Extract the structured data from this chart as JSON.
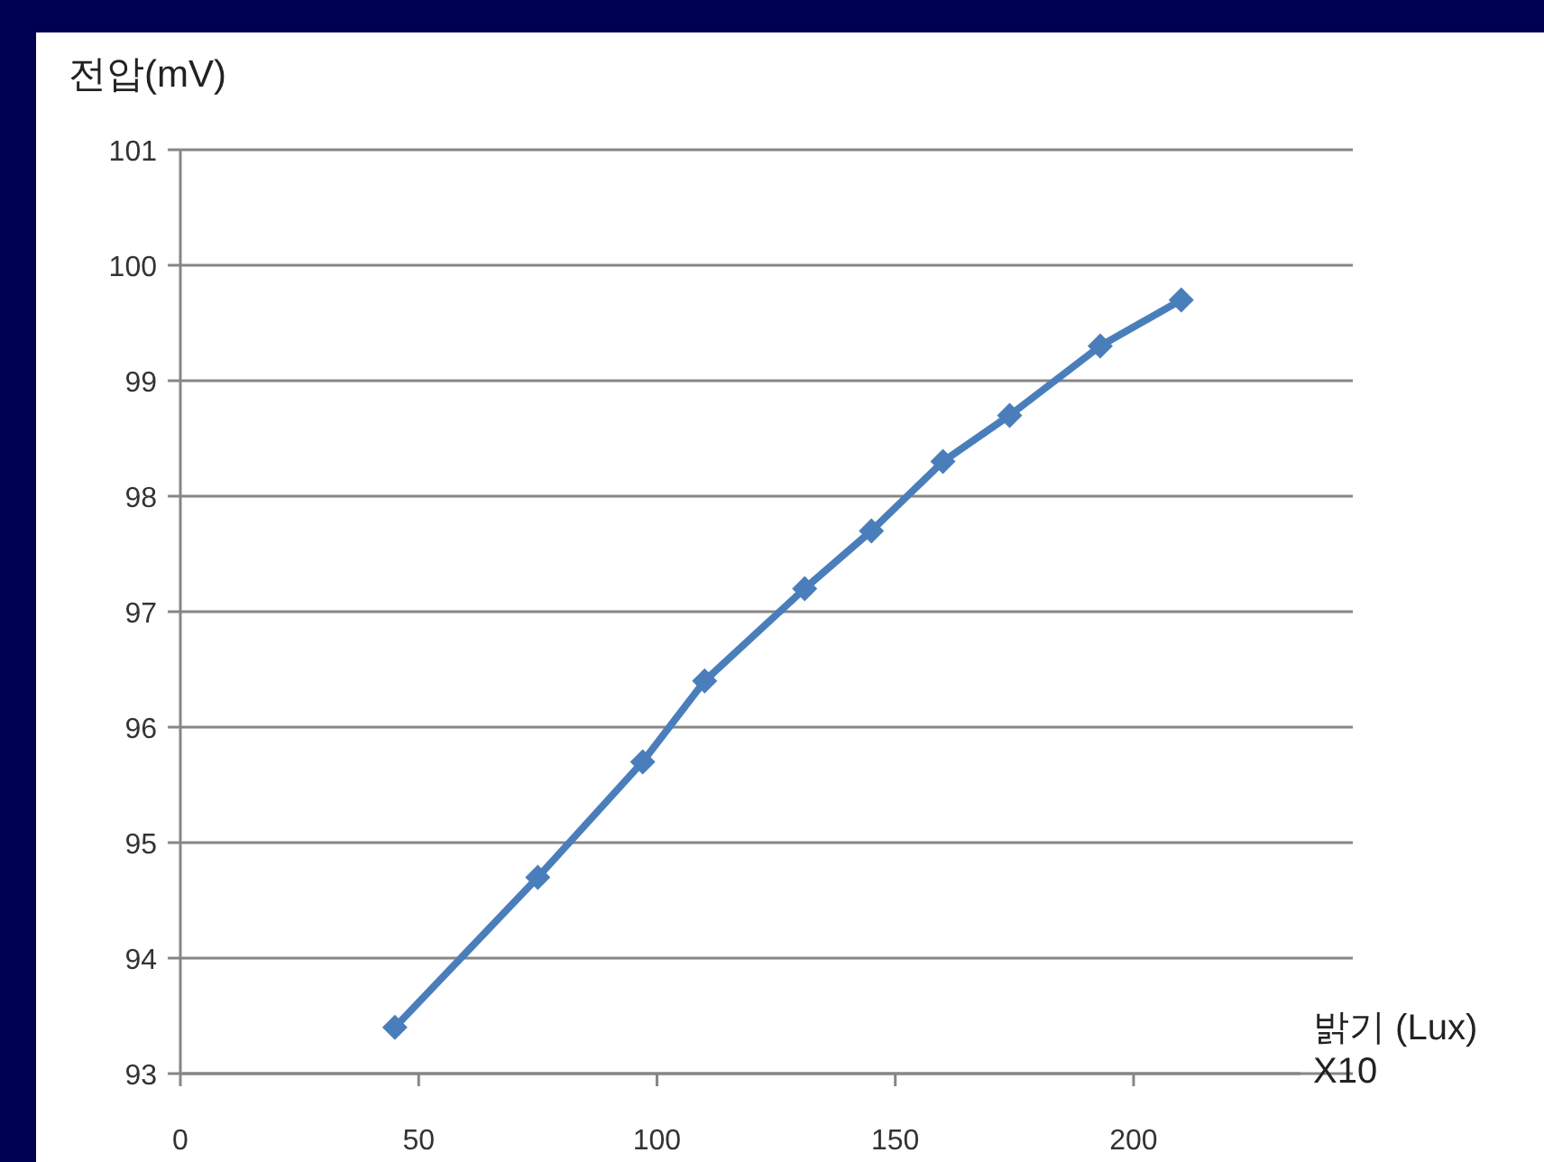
{
  "chart_data": {
    "type": "line",
    "ylabel": "전압(mV)",
    "xlabel": "밝기 (Lux)\nX10",
    "x": [
      45,
      75,
      97,
      110,
      131,
      145,
      160,
      174,
      193,
      210
    ],
    "series": [
      {
        "color": "#4a7ebb",
        "values": [
          93.4,
          94.7,
          95.7,
          96.4,
          97.2,
          97.7,
          98.3,
          98.7,
          99.3,
          99.7
        ]
      }
    ],
    "xlim": [
      0,
      246
    ],
    "xticks": [
      0,
      50,
      100,
      150,
      200
    ],
    "ylim": [
      93,
      101
    ],
    "yticks": [
      93,
      94,
      95,
      96,
      97,
      98,
      99,
      100,
      101
    ],
    "grid": "y",
    "marker": "diamond",
    "line_style": "solid"
  }
}
